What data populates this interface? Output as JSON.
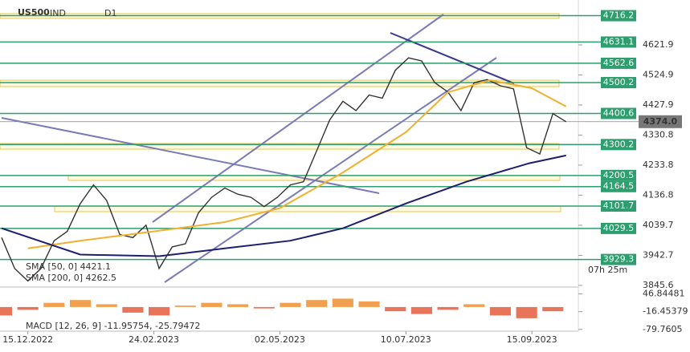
{
  "header": {
    "symbol": "US500",
    "market": "IND",
    "timeframe": "D1"
  },
  "countdown": "07h 25m",
  "chart_data": {
    "type": "line",
    "xlim": [
      0,
      220
    ],
    "xticks": [
      {
        "value": 10,
        "label": "15.12.2022"
      },
      {
        "value": 58,
        "label": "24.02.2023"
      },
      {
        "value": 106,
        "label": "02.05.2023"
      },
      {
        "value": 154,
        "label": "10.07.2023"
      },
      {
        "value": 202,
        "label": "15.09.2023"
      }
    ],
    "ylim": [
      3840.3,
      4766.8
    ],
    "yticks": [
      4621.9,
      4524.9,
      4427.9,
      4330.8,
      4233.8,
      4136.8,
      4039.7,
      3942.7,
      3845.6
    ],
    "levels": [
      4716.2,
      4631.1,
      4562.6,
      4500.2,
      4400.6,
      4300.2,
      4200.5,
      4164.5,
      4101.7,
      4029.5,
      3929.3
    ],
    "level_color": "#2f9e6e",
    "last_price": {
      "value": 4374,
      "label": "4374.0"
    },
    "x": [
      0,
      5,
      10,
      15,
      20,
      25,
      30,
      35,
      40,
      45,
      50,
      55,
      60,
      65,
      70,
      75,
      80,
      85,
      90,
      95,
      100,
      105,
      110,
      115,
      120,
      125,
      130,
      135,
      140,
      145,
      150,
      155,
      160,
      165,
      170,
      175,
      180,
      185,
      190,
      195,
      200,
      205,
      210,
      215
    ],
    "series": [
      {
        "name": "US500",
        "color": "#333333",
        "values": [
          4000,
          3900,
          3860,
          3900,
          3990,
          4020,
          4110,
          4170,
          4120,
          4010,
          4000,
          4040,
          3900,
          3970,
          3980,
          4080,
          4130,
          4160,
          4140,
          4130,
          4100,
          4130,
          4170,
          4180,
          4280,
          4380,
          4440,
          4410,
          4460,
          4450,
          4540,
          4580,
          4570,
          4500,
          4470,
          4410,
          4500,
          4510,
          4490,
          4480,
          4290,
          4270,
          4400,
          4374
        ]
      },
      {
        "name": "SMA [50, 0] 4421.1",
        "color": "#f0b030",
        "x": [
          10,
          30,
          60,
          85,
          106,
          130,
          154,
          170,
          186,
          202,
          215
        ],
        "values": [
          3965,
          3990,
          4022,
          4050,
          4095,
          4210,
          4340,
          4469,
          4508,
          4482,
          4423
        ]
      },
      {
        "name": "SMA [200, 0] 4262.5",
        "color": "#1c1f6e",
        "x": [
          0,
          30,
          60,
          85,
          110,
          130,
          154,
          177,
          201,
          215
        ],
        "values": [
          4030,
          3945,
          3940,
          3965,
          3990,
          4030,
          4110,
          4180,
          4240,
          4265
        ]
      }
    ],
    "macd": {
      "name": "MACD [12, 26, 9] -11.95754, -25.79472",
      "x": [
        0,
        10,
        20,
        30,
        40,
        50,
        60,
        70,
        80,
        90,
        100,
        110,
        120,
        130,
        140,
        150,
        160,
        170,
        180,
        190,
        200,
        210
      ],
      "values": [
        -30,
        -10,
        15,
        25,
        10,
        -20,
        -30,
        5,
        15,
        10,
        -5,
        15,
        25,
        30,
        20,
        -15,
        -25,
        -10,
        10,
        -30,
        -40,
        -15
      ],
      "y2lim": [
        -86.1,
        62.7
      ],
      "y2ticks": [
        46.84481,
        -16.45379,
        -79.7605
      ]
    }
  }
}
